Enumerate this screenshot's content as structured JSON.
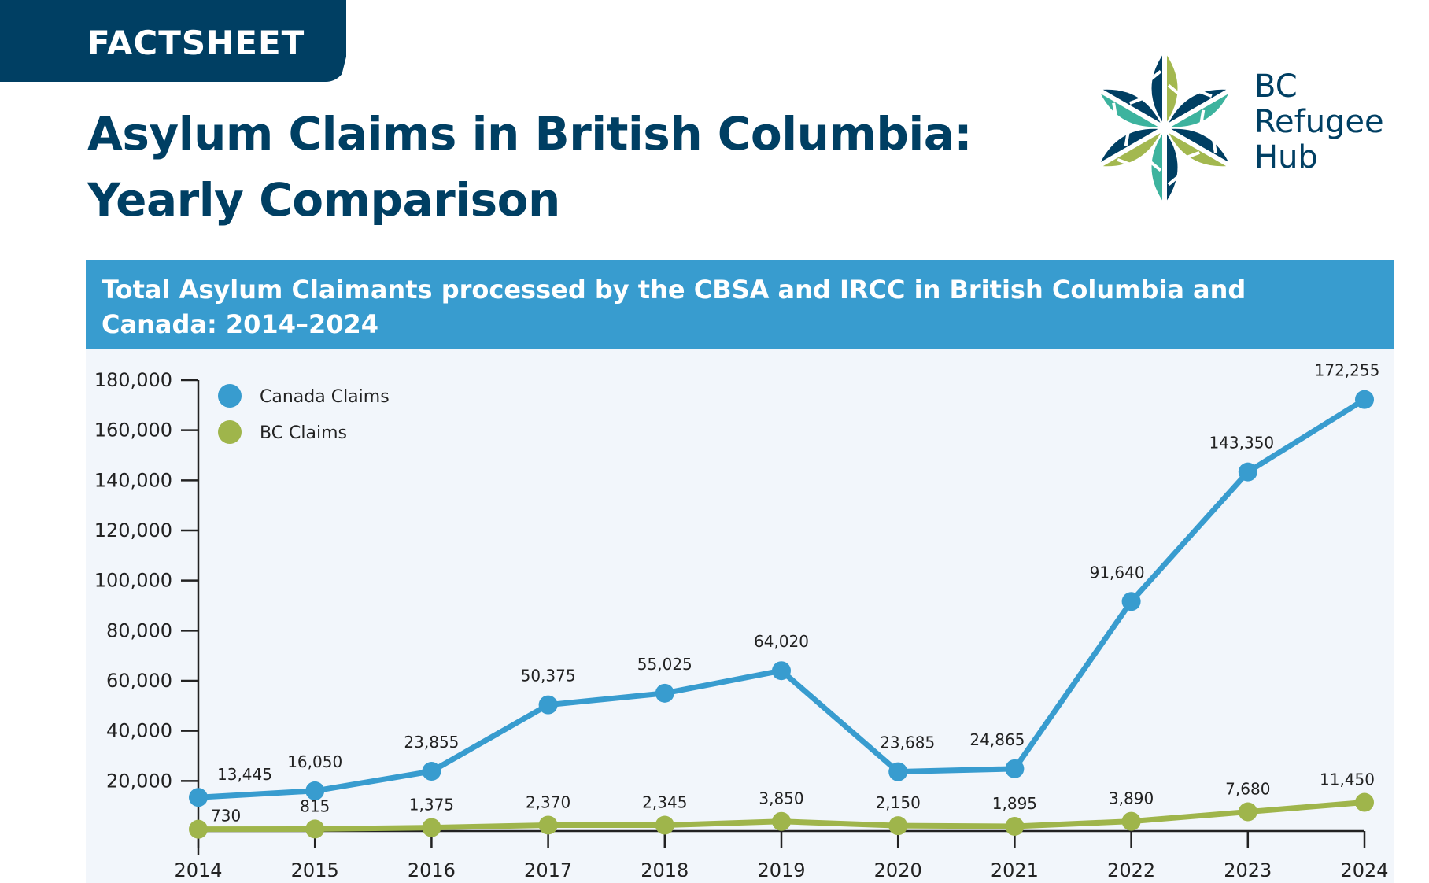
{
  "header": {
    "tab_label": "FACTSHEET",
    "title_line1": "Asylum Claims in British Columbia:",
    "title_line2": "Yearly Comparison"
  },
  "logo": {
    "line1": "BC",
    "line2": "Refugee",
    "line3": "Hub",
    "colors": {
      "navy": "#003f63",
      "teal": "#3db39e",
      "green": "#a3b84f"
    }
  },
  "chart_header": {
    "line1": "Total Asylum Claimants processed by the CBSA and IRCC in British Columbia and",
    "line2": "Canada: 2014–2024"
  },
  "colors": {
    "canada": "#389ccf",
    "bc": "#9fb54b",
    "header_band": "#389ccf",
    "navy": "#003f63",
    "panel_bg": "#f2f6fb"
  },
  "chart_data": {
    "type": "line",
    "title": "Total Asylum Claimants processed by the CBSA and IRCC in British Columbia and Canada: 2014–2024",
    "xlabel": "",
    "ylabel": "",
    "categories": [
      "2014",
      "2015",
      "2016",
      "2017",
      "2018",
      "2019",
      "2020",
      "2021",
      "2022",
      "2023",
      "2024"
    ],
    "series": [
      {
        "name": "Canada Claims",
        "color": "#389ccf",
        "values": [
          13445,
          16050,
          23855,
          50375,
          55025,
          64020,
          23685,
          24865,
          91640,
          143350,
          172255
        ],
        "labels": [
          "13,445",
          "16,050",
          "23,855",
          "50,375",
          "55,025",
          "64,020",
          "23,685",
          "24,865",
          "91,640",
          "143,350",
          "172,255"
        ]
      },
      {
        "name": "BC Claims",
        "color": "#9fb54b",
        "values": [
          730,
          815,
          1375,
          2370,
          2345,
          3850,
          2150,
          1895,
          3890,
          7680,
          11450
        ],
        "labels": [
          "730",
          "815",
          "1,375",
          "2,370",
          "2,345",
          "3,850",
          "2,150",
          "1,895",
          "3,890",
          "7,680",
          "11,450"
        ]
      }
    ],
    "ylim": [
      0,
      180000
    ],
    "yticks": [
      20000,
      40000,
      60000,
      80000,
      100000,
      120000,
      140000,
      160000,
      180000
    ],
    "ytick_labels": [
      "20,000",
      "40,000",
      "60,000",
      "80,000",
      "100,000",
      "120,000",
      "140,000",
      "160,000",
      "180,000"
    ],
    "grid": false,
    "legend_position": "top-left",
    "data_labels": true
  }
}
